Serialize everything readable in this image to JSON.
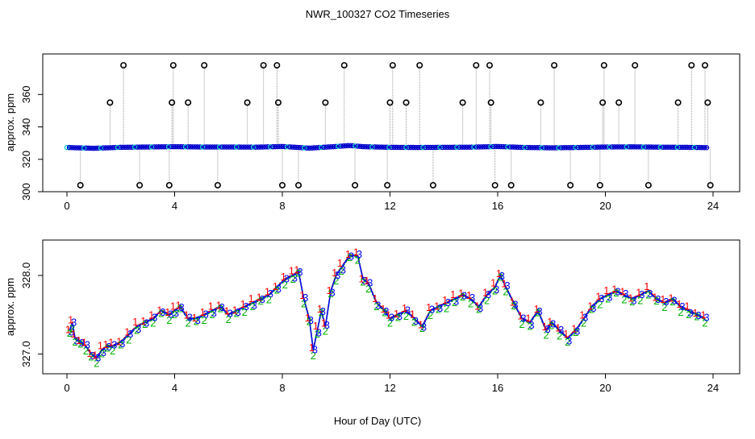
{
  "title": "NWR_100327  CO2 Timeseries",
  "xlabel": "Hour of Day (UTC)",
  "colors": {
    "flag1": "#ff0000",
    "flag2": "#00b000",
    "flag3": "#0000ff",
    "line_top": "#0000cc",
    "line_bottom": "#00c8c8",
    "outlier": "#000000",
    "connector": "#999999"
  },
  "chart_data": [
    {
      "type": "line",
      "name": "top-panel",
      "ylabel": "approx. ppm",
      "xlim": [
        0,
        24
      ],
      "ylim": [
        300,
        385
      ],
      "xticks": [
        0,
        4,
        8,
        12,
        16,
        20,
        24
      ],
      "yticks": [
        300,
        320,
        340,
        360
      ],
      "baseline_x": [
        0,
        1,
        2,
        3,
        4,
        5,
        6,
        7,
        8,
        9,
        10,
        10.5,
        11,
        12,
        13,
        14,
        15,
        16,
        17,
        18,
        19,
        20,
        21,
        22,
        23,
        23.8
      ],
      "baseline_y": [
        327.3,
        326.8,
        327.4,
        327.6,
        327.8,
        327.6,
        327.6,
        327.5,
        327.9,
        326.9,
        327.9,
        328.5,
        327.8,
        327.4,
        327.3,
        327.4,
        327.5,
        327.9,
        327.3,
        327.1,
        327.3,
        327.6,
        327.7,
        327.5,
        327.4,
        327.2
      ],
      "outliers": [
        {
          "x": 0.5,
          "y": 304
        },
        {
          "x": 1.6,
          "y": 355
        },
        {
          "x": 2.1,
          "y": 378
        },
        {
          "x": 2.7,
          "y": 304
        },
        {
          "x": 3.8,
          "y": 304
        },
        {
          "x": 3.9,
          "y": 355
        },
        {
          "x": 3.95,
          "y": 378
        },
        {
          "x": 4.5,
          "y": 355
        },
        {
          "x": 5.1,
          "y": 378
        },
        {
          "x": 5.6,
          "y": 304
        },
        {
          "x": 6.7,
          "y": 355
        },
        {
          "x": 7.3,
          "y": 378
        },
        {
          "x": 7.8,
          "y": 378
        },
        {
          "x": 7.85,
          "y": 355
        },
        {
          "x": 8.0,
          "y": 304
        },
        {
          "x": 8.6,
          "y": 304
        },
        {
          "x": 9.6,
          "y": 355
        },
        {
          "x": 10.3,
          "y": 378
        },
        {
          "x": 10.7,
          "y": 304
        },
        {
          "x": 11.9,
          "y": 304
        },
        {
          "x": 12.0,
          "y": 355
        },
        {
          "x": 12.1,
          "y": 378
        },
        {
          "x": 12.6,
          "y": 355
        },
        {
          "x": 13.1,
          "y": 378
        },
        {
          "x": 13.6,
          "y": 304
        },
        {
          "x": 14.7,
          "y": 355
        },
        {
          "x": 15.2,
          "y": 378
        },
        {
          "x": 15.7,
          "y": 378
        },
        {
          "x": 15.75,
          "y": 355
        },
        {
          "x": 15.9,
          "y": 304
        },
        {
          "x": 16.5,
          "y": 304
        },
        {
          "x": 17.6,
          "y": 355
        },
        {
          "x": 18.1,
          "y": 378
        },
        {
          "x": 18.7,
          "y": 304
        },
        {
          "x": 19.8,
          "y": 304
        },
        {
          "x": 19.9,
          "y": 355
        },
        {
          "x": 19.95,
          "y": 378
        },
        {
          "x": 20.5,
          "y": 355
        },
        {
          "x": 21.1,
          "y": 378
        },
        {
          "x": 21.6,
          "y": 304
        },
        {
          "x": 22.7,
          "y": 355
        },
        {
          "x": 23.2,
          "y": 378
        },
        {
          "x": 23.7,
          "y": 378
        },
        {
          "x": 23.8,
          "y": 355
        },
        {
          "x": 23.9,
          "y": 304
        }
      ]
    },
    {
      "type": "line",
      "name": "bottom-panel",
      "ylabel": "approx. ppm",
      "xlim": [
        0,
        24
      ],
      "ylim": [
        326.75,
        328.45
      ],
      "xticks": [
        0,
        4,
        8,
        12,
        16,
        20,
        24
      ],
      "yticks": [
        327.0,
        328.0
      ],
      "ytick_labels": [
        "327.0",
        "328.0"
      ],
      "x": [
        0.1,
        0.2,
        0.3,
        0.5,
        0.7,
        0.9,
        1.1,
        1.3,
        1.5,
        1.7,
        2.0,
        2.3,
        2.6,
        2.9,
        3.2,
        3.5,
        3.8,
        4.0,
        4.2,
        4.5,
        4.8,
        5.1,
        5.4,
        5.7,
        6.0,
        6.3,
        6.6,
        6.9,
        7.2,
        7.5,
        7.8,
        8.1,
        8.4,
        8.6,
        8.8,
        9.0,
        9.15,
        9.3,
        9.45,
        9.6,
        9.8,
        10.0,
        10.2,
        10.5,
        10.8,
        11.0,
        11.2,
        11.5,
        11.8,
        12.0,
        12.3,
        12.6,
        12.9,
        13.2,
        13.5,
        13.8,
        14.1,
        14.4,
        14.7,
        15.0,
        15.3,
        15.6,
        15.9,
        16.1,
        16.3,
        16.6,
        16.9,
        17.2,
        17.5,
        17.8,
        18.0,
        18.3,
        18.6,
        18.9,
        19.2,
        19.5,
        19.8,
        20.1,
        20.4,
        20.7,
        21.0,
        21.3,
        21.6,
        21.9,
        22.2,
        22.5,
        22.8,
        23.1,
        23.4,
        23.7
      ],
      "y": [
        327.3,
        327.4,
        327.2,
        327.15,
        327.1,
        327.0,
        326.95,
        327.05,
        327.1,
        327.1,
        327.15,
        327.25,
        327.35,
        327.4,
        327.45,
        327.55,
        327.5,
        327.55,
        327.6,
        327.45,
        327.45,
        327.5,
        327.55,
        327.6,
        327.5,
        327.55,
        327.6,
        327.65,
        327.7,
        327.75,
        327.85,
        327.95,
        328.0,
        328.05,
        327.7,
        327.45,
        327.05,
        327.3,
        327.55,
        327.35,
        327.8,
        328.0,
        328.1,
        328.25,
        328.25,
        327.95,
        327.9,
        327.65,
        327.55,
        327.45,
        327.5,
        327.55,
        327.45,
        327.35,
        327.55,
        327.6,
        327.65,
        327.7,
        327.75,
        327.7,
        327.6,
        327.75,
        327.85,
        328.0,
        327.85,
        327.65,
        327.45,
        327.4,
        327.55,
        327.3,
        327.4,
        327.3,
        327.2,
        327.3,
        327.45,
        327.6,
        327.7,
        327.75,
        327.8,
        327.75,
        327.7,
        327.75,
        327.8,
        327.7,
        327.65,
        327.7,
        327.6,
        327.55,
        327.5,
        327.45
      ],
      "series": [
        {
          "name": "1",
          "color": "#ff0000",
          "offset": 0.04
        },
        {
          "name": "2",
          "color": "#00b000",
          "offset": -0.04
        },
        {
          "name": "3",
          "color": "#0000ff",
          "offset": 0.0
        }
      ]
    }
  ]
}
